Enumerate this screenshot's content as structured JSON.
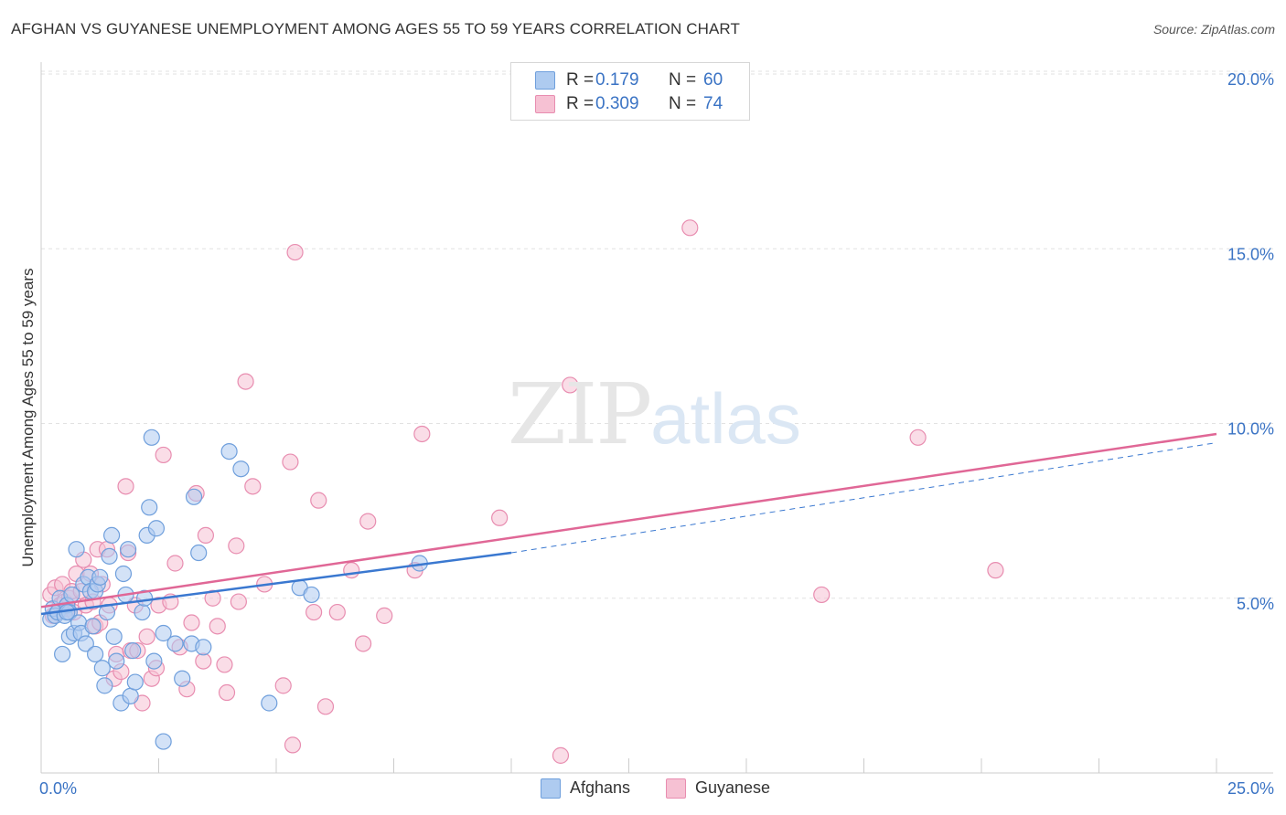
{
  "header": {
    "title": "AFGHAN VS GUYANESE UNEMPLOYMENT AMONG AGES 55 TO 59 YEARS CORRELATION CHART",
    "source": "Source: ZipAtlas.com"
  },
  "watermark": {
    "zip": "ZIP",
    "atlas": "atlas"
  },
  "legend": {
    "series": [
      {
        "r_label": "R =",
        "r_value": "0.179",
        "n_label": "N =",
        "n_value": "60"
      },
      {
        "r_label": "R =",
        "r_value": "0.309",
        "n_label": "N =",
        "n_value": "74"
      }
    ]
  },
  "colors": {
    "afghans_fill": "#aecbf0",
    "afghans_stroke": "#6f9fdc",
    "afghans_line": "#3a78d0",
    "guyanese_fill": "#f6c1d3",
    "guyanese_stroke": "#e88db0",
    "guyanese_line": "#e06796",
    "value_text": "#3a73c4",
    "grid": "#e2e2e2"
  },
  "chart_data": {
    "type": "scatter",
    "title": "AFGHAN VS GUYANESE UNEMPLOYMENT AMONG AGES 55 TO 59 YEARS CORRELATION CHART",
    "xlabel": "",
    "ylabel": "Unemployment Among Ages 55 to 59 years",
    "xlim": [
      0,
      25
    ],
    "ylim": [
      0,
      20
    ],
    "x_tick_labels": [
      {
        "value": 0,
        "label": "0.0%"
      },
      {
        "value": 25,
        "label": "25.0%"
      }
    ],
    "y_tick_labels": [
      {
        "value": 5,
        "label": "5.0%"
      },
      {
        "value": 10,
        "label": "10.0%"
      },
      {
        "value": 15,
        "label": "15.0%"
      },
      {
        "value": 20,
        "label": "20.0%"
      }
    ],
    "series": [
      {
        "name": "Afghans",
        "points": [
          [
            0.2,
            4.4
          ],
          [
            0.25,
            4.7
          ],
          [
            0.3,
            4.5
          ],
          [
            0.35,
            4.6
          ],
          [
            0.4,
            5.0
          ],
          [
            0.45,
            3.4
          ],
          [
            0.5,
            4.5
          ],
          [
            0.55,
            4.8
          ],
          [
            0.6,
            4.6
          ],
          [
            0.65,
            5.1
          ],
          [
            0.6,
            3.9
          ],
          [
            0.7,
            4.0
          ],
          [
            0.75,
            6.4
          ],
          [
            0.8,
            4.3
          ],
          [
            0.85,
            4.0
          ],
          [
            0.9,
            5.4
          ],
          [
            0.95,
            3.7
          ],
          [
            1.0,
            5.6
          ],
          [
            1.05,
            5.2
          ],
          [
            1.1,
            4.2
          ],
          [
            1.15,
            5.2
          ],
          [
            1.2,
            5.4
          ],
          [
            1.25,
            5.6
          ],
          [
            1.3,
            3.0
          ],
          [
            1.35,
            2.5
          ],
          [
            1.4,
            4.6
          ],
          [
            1.45,
            6.2
          ],
          [
            1.5,
            6.8
          ],
          [
            1.55,
            3.9
          ],
          [
            1.6,
            3.2
          ],
          [
            1.7,
            2.0
          ],
          [
            1.75,
            5.7
          ],
          [
            1.8,
            5.1
          ],
          [
            1.85,
            6.4
          ],
          [
            1.9,
            2.2
          ],
          [
            1.95,
            3.5
          ],
          [
            2.0,
            2.6
          ],
          [
            2.15,
            4.6
          ],
          [
            2.2,
            5.0
          ],
          [
            2.25,
            6.8
          ],
          [
            2.3,
            7.6
          ],
          [
            2.35,
            9.6
          ],
          [
            2.4,
            3.2
          ],
          [
            2.45,
            7.0
          ],
          [
            2.6,
            4.0
          ],
          [
            2.6,
            0.9
          ],
          [
            2.85,
            3.7
          ],
          [
            3.0,
            2.7
          ],
          [
            3.2,
            3.7
          ],
          [
            3.25,
            7.9
          ],
          [
            3.35,
            6.3
          ],
          [
            3.45,
            3.6
          ],
          [
            4.0,
            9.2
          ],
          [
            4.25,
            8.7
          ],
          [
            4.85,
            2.0
          ],
          [
            5.5,
            5.3
          ],
          [
            5.75,
            5.1
          ],
          [
            8.05,
            6.0
          ],
          [
            1.15,
            3.4
          ],
          [
            0.55,
            4.6
          ]
        ]
      },
      {
        "name": "Guyanese",
        "points": [
          [
            0.2,
            5.1
          ],
          [
            0.25,
            4.5
          ],
          [
            0.3,
            5.3
          ],
          [
            0.4,
            4.8
          ],
          [
            0.45,
            5.4
          ],
          [
            0.5,
            4.9
          ],
          [
            0.55,
            4.7
          ],
          [
            0.6,
            5.0
          ],
          [
            0.65,
            5.2
          ],
          [
            0.7,
            4.6
          ],
          [
            0.75,
            5.7
          ],
          [
            0.85,
            5.2
          ],
          [
            0.9,
            6.1
          ],
          [
            0.95,
            4.8
          ],
          [
            1.05,
            5.7
          ],
          [
            1.1,
            4.9
          ],
          [
            1.15,
            4.2
          ],
          [
            1.2,
            6.4
          ],
          [
            1.25,
            4.3
          ],
          [
            1.3,
            5.4
          ],
          [
            1.4,
            6.4
          ],
          [
            1.45,
            4.8
          ],
          [
            1.55,
            2.7
          ],
          [
            1.6,
            3.4
          ],
          [
            1.7,
            2.9
          ],
          [
            1.8,
            8.2
          ],
          [
            1.85,
            6.3
          ],
          [
            1.9,
            3.5
          ],
          [
            2.0,
            4.8
          ],
          [
            2.05,
            3.5
          ],
          [
            2.15,
            2.0
          ],
          [
            2.25,
            3.9
          ],
          [
            2.35,
            2.7
          ],
          [
            2.45,
            3.0
          ],
          [
            2.5,
            4.8
          ],
          [
            2.6,
            9.1
          ],
          [
            2.75,
            4.9
          ],
          [
            2.85,
            6.0
          ],
          [
            2.95,
            3.6
          ],
          [
            3.1,
            2.4
          ],
          [
            3.2,
            4.3
          ],
          [
            3.3,
            8.0
          ],
          [
            3.45,
            3.2
          ],
          [
            3.5,
            6.8
          ],
          [
            3.65,
            5.0
          ],
          [
            3.75,
            4.2
          ],
          [
            3.9,
            3.1
          ],
          [
            3.95,
            2.3
          ],
          [
            4.15,
            6.5
          ],
          [
            4.2,
            4.9
          ],
          [
            4.35,
            11.2
          ],
          [
            4.5,
            8.2
          ],
          [
            4.75,
            5.4
          ],
          [
            5.15,
            2.5
          ],
          [
            5.3,
            8.9
          ],
          [
            5.35,
            0.8
          ],
          [
            5.4,
            14.9
          ],
          [
            5.8,
            4.6
          ],
          [
            5.9,
            7.8
          ],
          [
            6.05,
            1.9
          ],
          [
            6.3,
            4.6
          ],
          [
            6.6,
            5.8
          ],
          [
            6.85,
            3.7
          ],
          [
            6.95,
            7.2
          ],
          [
            7.3,
            4.5
          ],
          [
            7.95,
            5.8
          ],
          [
            8.1,
            9.7
          ],
          [
            9.75,
            7.3
          ],
          [
            11.05,
            0.5
          ],
          [
            11.25,
            11.1
          ],
          [
            13.8,
            15.6
          ],
          [
            16.6,
            5.1
          ],
          [
            18.65,
            9.6
          ],
          [
            20.3,
            5.8
          ]
        ]
      }
    ],
    "trend_lines": [
      {
        "series": "Afghans",
        "solid": [
          [
            0.0,
            4.55
          ],
          [
            10.0,
            6.3
          ]
        ],
        "dashed": [
          [
            10.0,
            6.3
          ],
          [
            25.0,
            9.45
          ]
        ]
      },
      {
        "series": "Guyanese",
        "solid": [
          [
            0.0,
            4.75
          ],
          [
            25.0,
            9.7
          ]
        ]
      }
    ]
  }
}
